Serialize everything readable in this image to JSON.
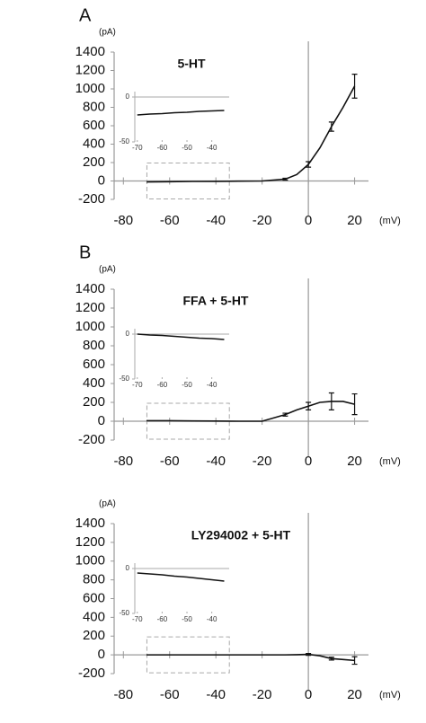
{
  "chart_data": [
    {
      "type": "line",
      "panel_label": "A",
      "title": "5-HT",
      "y_unit": "(pA)",
      "x_unit": "(mV)",
      "x": [
        -70,
        -60,
        -50,
        -40,
        -30,
        -20,
        -10,
        -5,
        0,
        5,
        10,
        15,
        20
      ],
      "values": [
        -10,
        -8,
        -5,
        -4,
        -2,
        0,
        20,
        70,
        180,
        360,
        590,
        800,
        1030
      ],
      "errors": [
        null,
        null,
        null,
        null,
        null,
        null,
        10,
        null,
        30,
        null,
        50,
        null,
        130
      ],
      "xlim": [
        -84,
        26
      ],
      "xticks": [
        -80,
        -60,
        -40,
        -20,
        0,
        20
      ],
      "ylim": [
        -200,
        1400
      ],
      "yticks": [
        -200,
        0,
        200,
        400,
        600,
        800,
        1000,
        1200,
        1400
      ],
      "inset": {
        "x": [
          -70,
          -65,
          -60,
          -55,
          -50,
          -45,
          -40,
          -35
        ],
        "values": [
          -20,
          -19,
          -18.5,
          -17.5,
          -17,
          -16,
          -15.5,
          -15
        ],
        "xlim": [
          -71,
          -33
        ],
        "xticks": [
          -70,
          -60,
          -50,
          -40
        ],
        "ylim": [
          -50,
          0
        ],
        "yticks": [
          0,
          -50
        ]
      }
    },
    {
      "type": "line",
      "panel_label": "B",
      "title": "FFA + 5-HT",
      "y_unit": "(pA)",
      "x_unit": "(mV)",
      "x": [
        -70,
        -60,
        -50,
        -40,
        -30,
        -20,
        -10,
        -5,
        0,
        5,
        10,
        15,
        20
      ],
      "values": [
        5,
        5,
        3,
        2,
        0,
        0,
        70,
        120,
        160,
        200,
        210,
        210,
        180
      ],
      "errors": [
        null,
        null,
        null,
        null,
        null,
        null,
        15,
        null,
        40,
        null,
        90,
        null,
        110
      ],
      "xlim": [
        -84,
        26
      ],
      "xticks": [
        -80,
        -60,
        -40,
        -20,
        0,
        20
      ],
      "ylim": [
        -200,
        1400
      ],
      "yticks": [
        -200,
        0,
        200,
        400,
        600,
        800,
        1000,
        1200,
        1400
      ],
      "inset": {
        "x": [
          -70,
          -65,
          -60,
          -55,
          -50,
          -45,
          -40,
          -35
        ],
        "values": [
          0,
          -1,
          -1.5,
          -2.5,
          -3.5,
          -4.5,
          -5,
          -6
        ],
        "xlim": [
          -71,
          -33
        ],
        "xticks": [
          -70,
          -60,
          -50,
          -40
        ],
        "ylim": [
          -50,
          0
        ],
        "yticks": [
          0,
          -50
        ]
      }
    },
    {
      "type": "line",
      "title": "LY294002 + 5-HT",
      "y_unit": "(pA)",
      "x_unit": "(mV)",
      "x": [
        -70,
        -60,
        -50,
        -40,
        -30,
        -20,
        -10,
        -5,
        0,
        5,
        10,
        15,
        20
      ],
      "values": [
        0,
        0,
        0,
        0,
        0,
        0,
        0,
        2,
        5,
        -10,
        -40,
        -50,
        -60
      ],
      "errors": [
        null,
        null,
        null,
        null,
        null,
        null,
        null,
        null,
        10,
        null,
        15,
        null,
        40
      ],
      "xlim": [
        -84,
        26
      ],
      "xticks": [
        -80,
        -60,
        -40,
        -20,
        0,
        20
      ],
      "ylim": [
        -200,
        1400
      ],
      "yticks": [
        -200,
        0,
        200,
        400,
        600,
        800,
        1000,
        1200,
        1400
      ],
      "inset": {
        "x": [
          -70,
          -65,
          -60,
          -55,
          -50,
          -45,
          -40,
          -35
        ],
        "values": [
          -5,
          -6,
          -7,
          -8.5,
          -9.5,
          -11,
          -12.5,
          -14
        ],
        "xlim": [
          -71,
          -33
        ],
        "xticks": [
          -70,
          -60,
          -50,
          -40
        ],
        "ylim": [
          -50,
          0
        ],
        "yticks": [
          0,
          -50
        ]
      }
    }
  ]
}
